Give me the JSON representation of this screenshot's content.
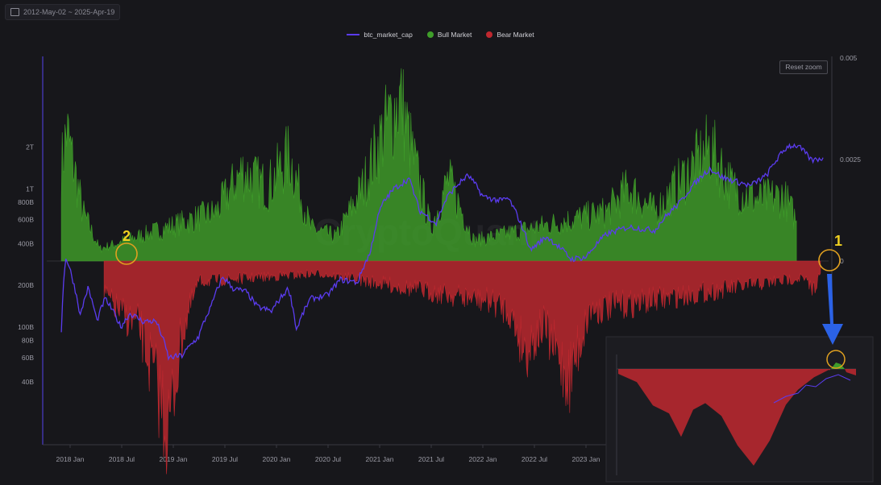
{
  "toolbar": {
    "date_range": "2012-May-02 ~ 2025-Apr-19"
  },
  "legend": [
    {
      "label": "btc_market_cap",
      "color": "#5b3cf0"
    },
    {
      "label": "Bull Market",
      "color": "#3f9e2a"
    },
    {
      "label": "Bear Market",
      "color": "#c0282f"
    }
  ],
  "reset_zoom": "Reset zoom",
  "watermark": "CryptoQuant",
  "annotations": {
    "one": "1",
    "two": "2"
  },
  "colors": {
    "market_cap": "#5b3cf0",
    "bull": "#3f9e2a",
    "bear": "#c0282f",
    "circle": "#e0a020",
    "arrow": "#2b62e6"
  },
  "chart_data": {
    "type": "line",
    "x_tick_labels": [
      "2018 Jan",
      "2018 Jul",
      "2019 Jan",
      "2019 Jul",
      "2020 Jan",
      "2020 Jul",
      "2021 Jan",
      "2021 Jul",
      "2022 Jan",
      "2022 Jul",
      "2023 Jan"
    ],
    "y_left_ticks": [
      "2T",
      "1T",
      "800B",
      "600B",
      "400B",
      "200B",
      "100B",
      "80B",
      "60B",
      "40B"
    ],
    "y_right_ticks": [
      "0.005",
      "0.0025",
      "0"
    ],
    "y_left_scale": "log",
    "series": [
      {
        "name": "btc_market_cap",
        "points": [
          [
            "2017-12-01",
            95
          ],
          [
            "2017-12-17",
            320
          ],
          [
            "2018-01-15",
            200
          ],
          [
            "2018-02-06",
            120
          ],
          [
            "2018-03-05",
            190
          ],
          [
            "2018-04-06",
            110
          ],
          [
            "2018-05-05",
            160
          ],
          [
            "2018-06-29",
            100
          ],
          [
            "2018-08-01",
            125
          ],
          [
            "2018-09-15",
            110
          ],
          [
            "2018-11-01",
            110
          ],
          [
            "2018-12-15",
            60
          ],
          [
            "2019-02-01",
            62
          ],
          [
            "2019-04-01",
            85
          ],
          [
            "2019-05-15",
            140
          ],
          [
            "2019-06-26",
            230
          ],
          [
            "2019-08-01",
            190
          ],
          [
            "2019-09-15",
            180
          ],
          [
            "2019-10-25",
            140
          ],
          [
            "2019-12-15",
            130
          ],
          [
            "2020-02-13",
            190
          ],
          [
            "2020-03-12",
            95
          ],
          [
            "2020-05-01",
            160
          ],
          [
            "2020-07-01",
            170
          ],
          [
            "2020-08-15",
            220
          ],
          [
            "2020-10-15",
            210
          ],
          [
            "2020-11-30",
            350
          ],
          [
            "2021-01-08",
            760
          ],
          [
            "2021-02-20",
            1000
          ],
          [
            "2021-04-14",
            1180
          ],
          [
            "2021-05-20",
            700
          ],
          [
            "2021-07-20",
            560
          ],
          [
            "2021-09-01",
            900
          ],
          [
            "2021-10-20",
            1150
          ],
          [
            "2021-11-10",
            1250
          ],
          [
            "2022-01-01",
            880
          ],
          [
            "2022-03-01",
            820
          ],
          [
            "2022-04-01",
            850
          ],
          [
            "2022-05-15",
            560
          ],
          [
            "2022-06-18",
            360
          ],
          [
            "2022-08-15",
            450
          ],
          [
            "2022-11-09",
            310
          ],
          [
            "2023-01-01",
            320
          ],
          [
            "2023-03-15",
            470
          ],
          [
            "2023-06-01",
            530
          ],
          [
            "2023-09-01",
            500
          ],
          [
            "2023-12-01",
            800
          ],
          [
            "2024-03-14",
            1400
          ],
          [
            "2024-05-01",
            1200
          ],
          [
            "2024-08-05",
            1050
          ],
          [
            "2024-10-01",
            1250
          ],
          [
            "2024-12-17",
            2050
          ],
          [
            "2025-01-20",
            2050
          ],
          [
            "2025-03-10",
            1600
          ],
          [
            "2025-04-19",
            1680
          ]
        ]
      },
      {
        "name": "Bull Market",
        "points": [
          [
            "2017-12-01",
            0.0023
          ],
          [
            "2017-12-20",
            0.0032
          ],
          [
            "2018-02-15",
            0.0012
          ],
          [
            "2018-04-15",
            0.0003
          ],
          [
            "2019-06-01",
            0.0012
          ],
          [
            "2019-09-01",
            0.0022
          ],
          [
            "2019-12-01",
            0.0018
          ],
          [
            "2020-02-15",
            0.0026
          ],
          [
            "2020-05-01",
            0.0008
          ],
          [
            "2020-08-01",
            0.0006
          ],
          [
            "2020-11-01",
            0.0018
          ],
          [
            "2021-01-15",
            0.0032
          ],
          [
            "2021-03-15",
            0.004
          ],
          [
            "2021-05-01",
            0.0025
          ],
          [
            "2021-07-01",
            0.0008
          ],
          [
            "2021-09-01",
            0.002
          ],
          [
            "2021-12-01",
            0.0005
          ],
          [
            "2023-03-15",
            0.0012
          ],
          [
            "2023-06-01",
            0.0018
          ],
          [
            "2023-09-01",
            0.0012
          ],
          [
            "2024-01-01",
            0.0022
          ],
          [
            "2024-03-15",
            0.0028
          ],
          [
            "2024-06-01",
            0.0018
          ],
          [
            "2024-09-01",
            0.0015
          ],
          [
            "2024-12-01",
            0.0016
          ],
          [
            "2025-01-15",
            0.001
          ]
        ]
      },
      {
        "name": "Bear Market",
        "points": [
          [
            "2018-05-01",
            -0.0008
          ],
          [
            "2018-07-01",
            -0.0013
          ],
          [
            "2018-09-01",
            -0.0016
          ],
          [
            "2018-11-01",
            -0.003
          ],
          [
            "2018-12-15",
            -0.0042
          ],
          [
            "2019-02-01",
            -0.0018
          ],
          [
            "2019-04-01",
            -0.0005
          ],
          [
            "2020-06-01",
            -0.0003
          ],
          [
            "2022-02-01",
            -0.001
          ],
          [
            "2022-04-01",
            -0.0012
          ],
          [
            "2022-06-01",
            -0.0022
          ],
          [
            "2022-08-01",
            -0.0016
          ],
          [
            "2022-11-01",
            -0.0029
          ],
          [
            "2023-01-15",
            -0.0012
          ],
          [
            "2025-02-01",
            -0.0004
          ],
          [
            "2025-03-15",
            -0.0007
          ],
          [
            "2025-04-10",
            -0.0003
          ]
        ]
      }
    ],
    "grid": false,
    "legend_position": "top-center"
  }
}
